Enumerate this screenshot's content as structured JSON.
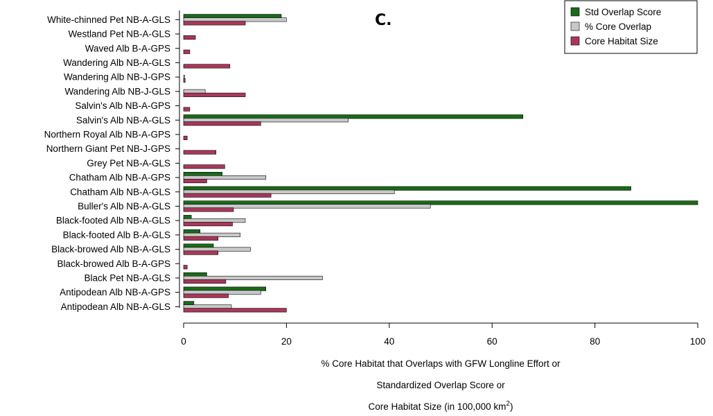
{
  "chart_data": {
    "type": "bar",
    "orientation": "horizontal",
    "panel_label": "C.",
    "categories": [
      "White-chinned Pet NB-A-GLS",
      "Westland Pet NB-A-GLS",
      "Waved Alb B-A-GPS",
      "Wandering Alb NB-A-GLS",
      "Wandering Alb NB-J-GPS",
      "Wandering Alb NB-J-GLS",
      "Salvin's Alb NB-A-GPS",
      "Salvin's Alb NB-A-GLS",
      "Northern Royal Alb NB-A-GPS",
      "Northern Giant Pet NB-J-GPS",
      "Grey Pet NB-A-GLS",
      "Chatham Alb NB-A-GPS",
      "Chatham Alb NB-A-GLS",
      "Buller's Alb NB-A-GLS",
      "Black-footed Alb NB-A-GLS",
      "Black-footed Alb B-A-GLS",
      "Black-browed Alb NB-A-GLS",
      "Black-browed Alb B-A-GPS",
      "Black Pet NB-A-GLS",
      "Antipodean Alb NB-A-GPS",
      "Antipodean Alb NB-A-GLS"
    ],
    "series": [
      {
        "name": "Std Overlap Score",
        "color": "#1a6b1a",
        "values": [
          19,
          0,
          0,
          0,
          0,
          0,
          0,
          66,
          0,
          0,
          0,
          7.5,
          87,
          100,
          1.5,
          3.2,
          5.8,
          0,
          4.5,
          16,
          2
        ]
      },
      {
        "name": "% Core Overlap",
        "color": "#c8c8c8",
        "values": [
          20,
          0,
          0,
          0,
          0.2,
          4.2,
          0,
          32,
          0,
          0,
          0,
          16,
          41,
          48,
          12,
          11,
          13,
          0,
          27,
          15,
          9.3
        ]
      },
      {
        "name": "Core Habitat Size",
        "color": "#a8385a",
        "values": [
          12,
          2.3,
          1.2,
          9,
          0.3,
          12,
          1.2,
          15,
          0.7,
          6.3,
          8,
          4.5,
          17,
          9.7,
          9.5,
          6.7,
          6.7,
          0.7,
          8.2,
          8.7,
          20
        ]
      }
    ],
    "xticks": [
      "0",
      "20",
      "40",
      "60",
      "80",
      "100"
    ],
    "xlim": [
      0,
      100
    ],
    "xlabel_lines": [
      "% Core Habitat that Overlaps with GFW Longline Effort or",
      "Standardized Overlap Score or",
      "Core Habitat Size (in 100,000 km",
      "2",
      ")"
    ],
    "legend_position": "top-right",
    "grid": false
  }
}
